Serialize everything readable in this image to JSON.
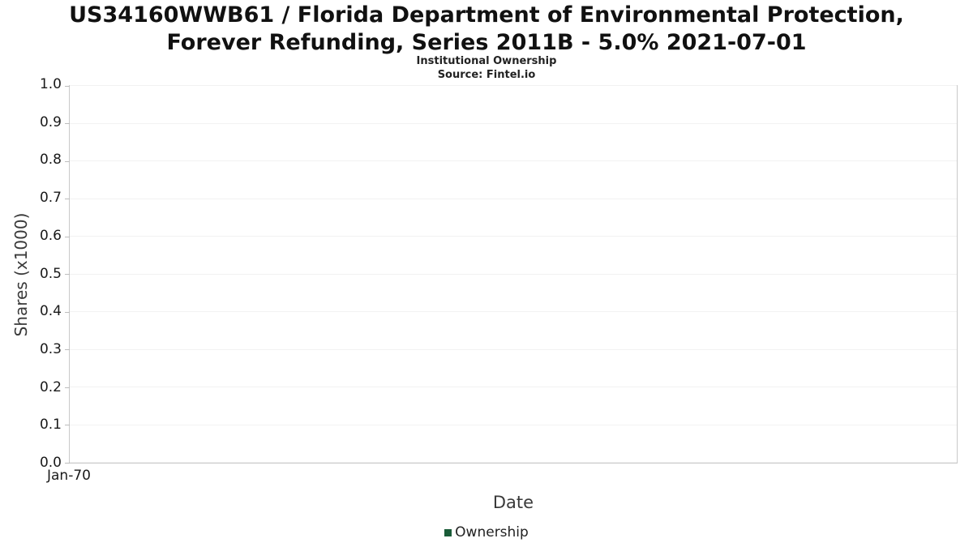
{
  "header": {
    "title": "US34160WWB61 / Florida Department of Environmental Protection, Forever Refunding, Series 2011B - 5.0% 2021-07-01",
    "subtitle": "Institutional Ownership",
    "source": "Source: Fintel.io"
  },
  "chart_data": {
    "type": "line",
    "title": "US34160WWB61 / Florida Department of Environmental Protection, Forever Refunding, Series 2011B - 5.0% 2021-07-01",
    "xlabel": "Date",
    "ylabel": "Shares (x1000)",
    "ylim": [
      0.0,
      1.0
    ],
    "yticks": [
      0.0,
      0.1,
      0.2,
      0.3,
      0.4,
      0.5,
      0.6,
      0.7,
      0.8,
      0.9,
      1.0
    ],
    "xticks": [
      "Jan-70"
    ],
    "grid": true,
    "legend_position": "bottom",
    "series": [
      {
        "name": "Ownership",
        "color": "#1a5c38",
        "values": []
      }
    ]
  }
}
